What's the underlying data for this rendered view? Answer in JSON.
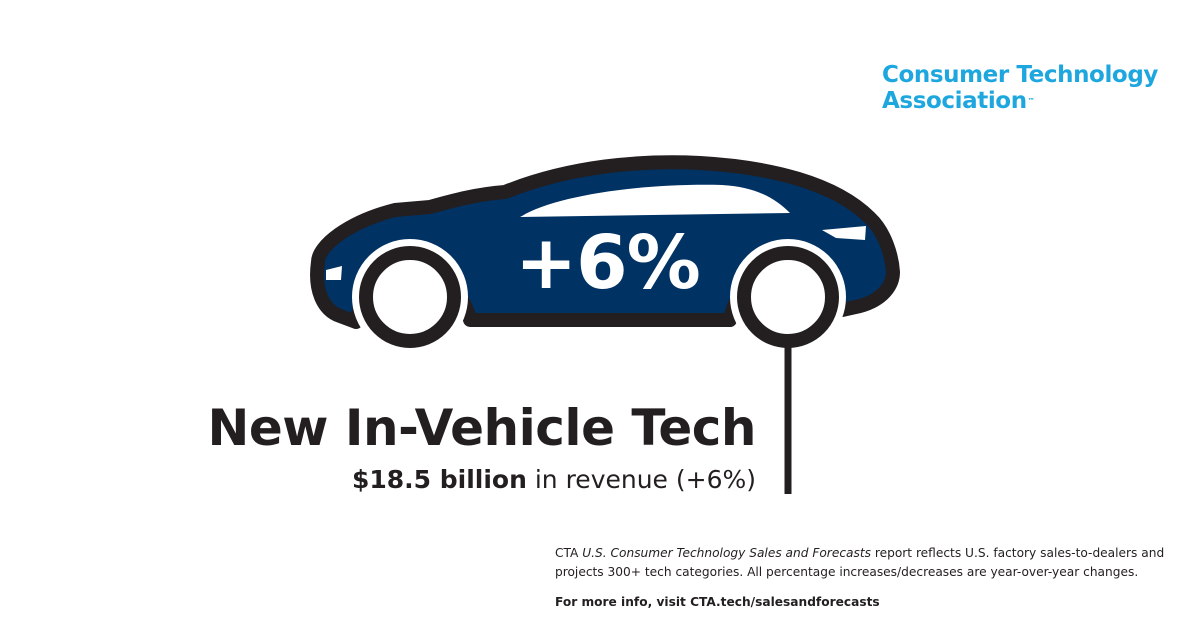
{
  "logo": {
    "line1": "Consumer Technology",
    "line2": "Association",
    "tm": "™",
    "color": "#1ea7df"
  },
  "car": {
    "percent_label": "+6%",
    "body_color": "#003264",
    "outline_color": "#231f20"
  },
  "headline": {
    "title": "New In-Vehicle Tech",
    "revenue_value": "$18.5 billion",
    "revenue_suffix": "in revenue (+6%)"
  },
  "footnote": {
    "prefix": "CTA ",
    "report_name": "U.S. Consumer Technology Sales and Forecasts",
    "body": " report reflects U.S. factory sales-to-dealers and projects 300+ tech categories. All percentage increases/decreases are year-over-year changes.",
    "more_prefix": "For more info, visit ",
    "more_url": "CTA.tech/salesandforecasts"
  }
}
